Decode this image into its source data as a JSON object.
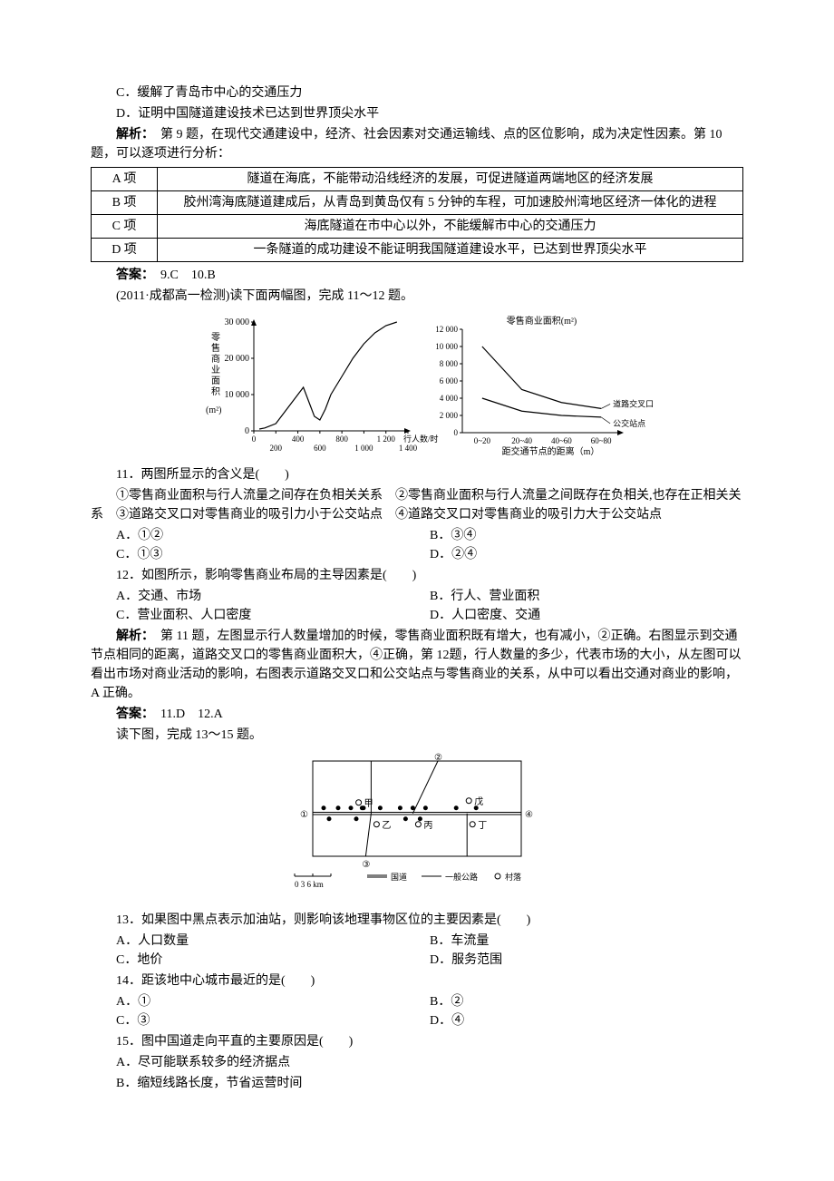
{
  "q9_10": {
    "optC": "C．缓解了青岛市中心的交通压力",
    "optD": "D．证明中国隧道建设技术已达到世界顶尖水平",
    "analysis_label": "解析：",
    "analysis_text": "　第 9 题，在现代交通建设中，经济、社会因素对交通运输线、点的区位影响，成为决定性因素。第 10 题，可以逐项进行分析：",
    "table": {
      "rows": [
        [
          "A 项",
          "隧道在海底，不能带动沿线经济的发展，可促进隧道两端地区的经济发展"
        ],
        [
          "B 项",
          "胶州湾海底隧道建成后，从青岛到黄岛仅有 5 分钟的车程，可加速胶州湾地区经济一体化的进程"
        ],
        [
          "C 项",
          "海底隧道在市中心以外，不能缓解市中心的交通压力"
        ],
        [
          "D 项",
          "一条隧道的成功建设不能证明我国隧道建设水平，已达到世界顶尖水平"
        ]
      ]
    },
    "answer_label": "答案：",
    "answer_text": "　9.C　10.B"
  },
  "intro_11_12": "(2011·成都高一检测)读下面两幅图，完成 11～12 题。",
  "chart1": {
    "ylabel": "零售商业面积",
    "yunit": "(m²)",
    "ylim": [
      0,
      30000
    ],
    "yticks": [
      0,
      10000,
      20000,
      30000
    ],
    "ytick_labels": [
      "0",
      "10 000",
      "20 000",
      "30 000"
    ],
    "xlabel": "行人数/时",
    "xticks": [
      0,
      200,
      400,
      600,
      800,
      1000,
      1200,
      1400
    ],
    "xtick_labels_top": [
      "0",
      "",
      "400",
      "",
      "800",
      "",
      "1 200"
    ],
    "xtick_labels_bot": [
      "",
      "200",
      "",
      "600",
      "",
      "1 000",
      "",
      "1 400"
    ],
    "line_color": "#000000",
    "points": [
      [
        50,
        500
      ],
      [
        100,
        800
      ],
      [
        200,
        2000
      ],
      [
        300,
        6000
      ],
      [
        400,
        10000
      ],
      [
        450,
        12000
      ],
      [
        500,
        8000
      ],
      [
        550,
        4000
      ],
      [
        600,
        3000
      ],
      [
        650,
        6000
      ],
      [
        700,
        10000
      ],
      [
        800,
        15000
      ],
      [
        900,
        20000
      ],
      [
        1000,
        24000
      ],
      [
        1100,
        27000
      ],
      [
        1200,
        29000
      ],
      [
        1300,
        30000
      ]
    ]
  },
  "chart2": {
    "title": "零售商业面积(m²)",
    "ylim": [
      0,
      12000
    ],
    "yticks": [
      0,
      2000,
      4000,
      6000,
      8000,
      10000,
      12000
    ],
    "ytick_labels": [
      "0",
      "2 000",
      "4 000",
      "6 000",
      "8 000",
      "10 000",
      "12 000"
    ],
    "xlabel": "距交通节点的距离（m）",
    "xticks_labels": [
      "0~20",
      "20~40",
      "40~60",
      "60~80"
    ],
    "series": [
      {
        "name": "道路交叉口",
        "color": "#000000",
        "points": [
          [
            10,
            10000
          ],
          [
            30,
            5000
          ],
          [
            50,
            3500
          ],
          [
            70,
            2800
          ]
        ]
      },
      {
        "name": "公交站点",
        "color": "#000000",
        "points": [
          [
            10,
            4000
          ],
          [
            30,
            2500
          ],
          [
            50,
            2000
          ],
          [
            70,
            1800
          ]
        ]
      }
    ]
  },
  "q11": {
    "stem": "11．两图所显示的含义是(　　)",
    "items": "①零售商业面积与行人流量之间存在负相关关系　②零售商业面积与行人流量之间既存在负相关,也存在正相关关系　③道路交叉口对零售商业的吸引力小于公交站点　④道路交叉口对零售商业的吸引力大于公交站点",
    "A": "A．①②",
    "B": "B．③④",
    "C": "C．①③",
    "D": "D．②④"
  },
  "q12": {
    "stem": "12．如图所示，影响零售商业布局的主导因素是(　　)",
    "A": "A．交通、市场",
    "B": "B．行人、营业面积",
    "C": "C．营业面积、人口密度",
    "D": "D．人口密度、交通"
  },
  "analysis_11_12": {
    "label": "解析：",
    "text": "　第 11 题，左图显示行人数量增加的时候，零售商业面积既有增大，也有减小，②正确。右图显示到交通节点相同的距离，道路交叉口的零售商业面积大，④正确，第 12题，行人数量的多少，代表市场的大小，从左图可以看出市场对商业活动的影响，右图表示道路交叉口和公交站点与零售商业的关系，从中可以看出交通对商业的影响，A 正确。"
  },
  "answer_11_12": {
    "label": "答案：",
    "text": "　11.D　12.A"
  },
  "intro_13_15": "读下图，完成 13～15 题。",
  "map": {
    "labels": {
      "1": "①",
      "2": "②",
      "3": "③",
      "4": "④",
      "jia": "甲",
      "yi": "乙",
      "bing": "丙",
      "ding": "丁",
      "wu": "戊"
    },
    "scale": "0 3 6 km",
    "legend": {
      "guodao": "国道",
      "gonglu": "一般公路",
      "cunluo": "村落"
    },
    "colors": {
      "road": "#000000",
      "bg": "#ffffff",
      "border": "#000000"
    }
  },
  "q13": {
    "stem": "13．如果图中黑点表示加油站，则影响该地理事物区位的主要因素是(　　)",
    "A": "A．人口数量",
    "B": "B．车流量",
    "C": "C．地价",
    "D": "D．服务范围"
  },
  "q14": {
    "stem": "14．距该地中心城市最近的是(　　)",
    "A": "A．①",
    "B": "B．②",
    "C": "C．③",
    "D": "D．④"
  },
  "q15": {
    "stem": "15．图中国道走向平直的主要原因是(　　)",
    "A": "A．尽可能联系较多的经济据点",
    "B": "B．缩短线路长度，节省运营时间"
  }
}
